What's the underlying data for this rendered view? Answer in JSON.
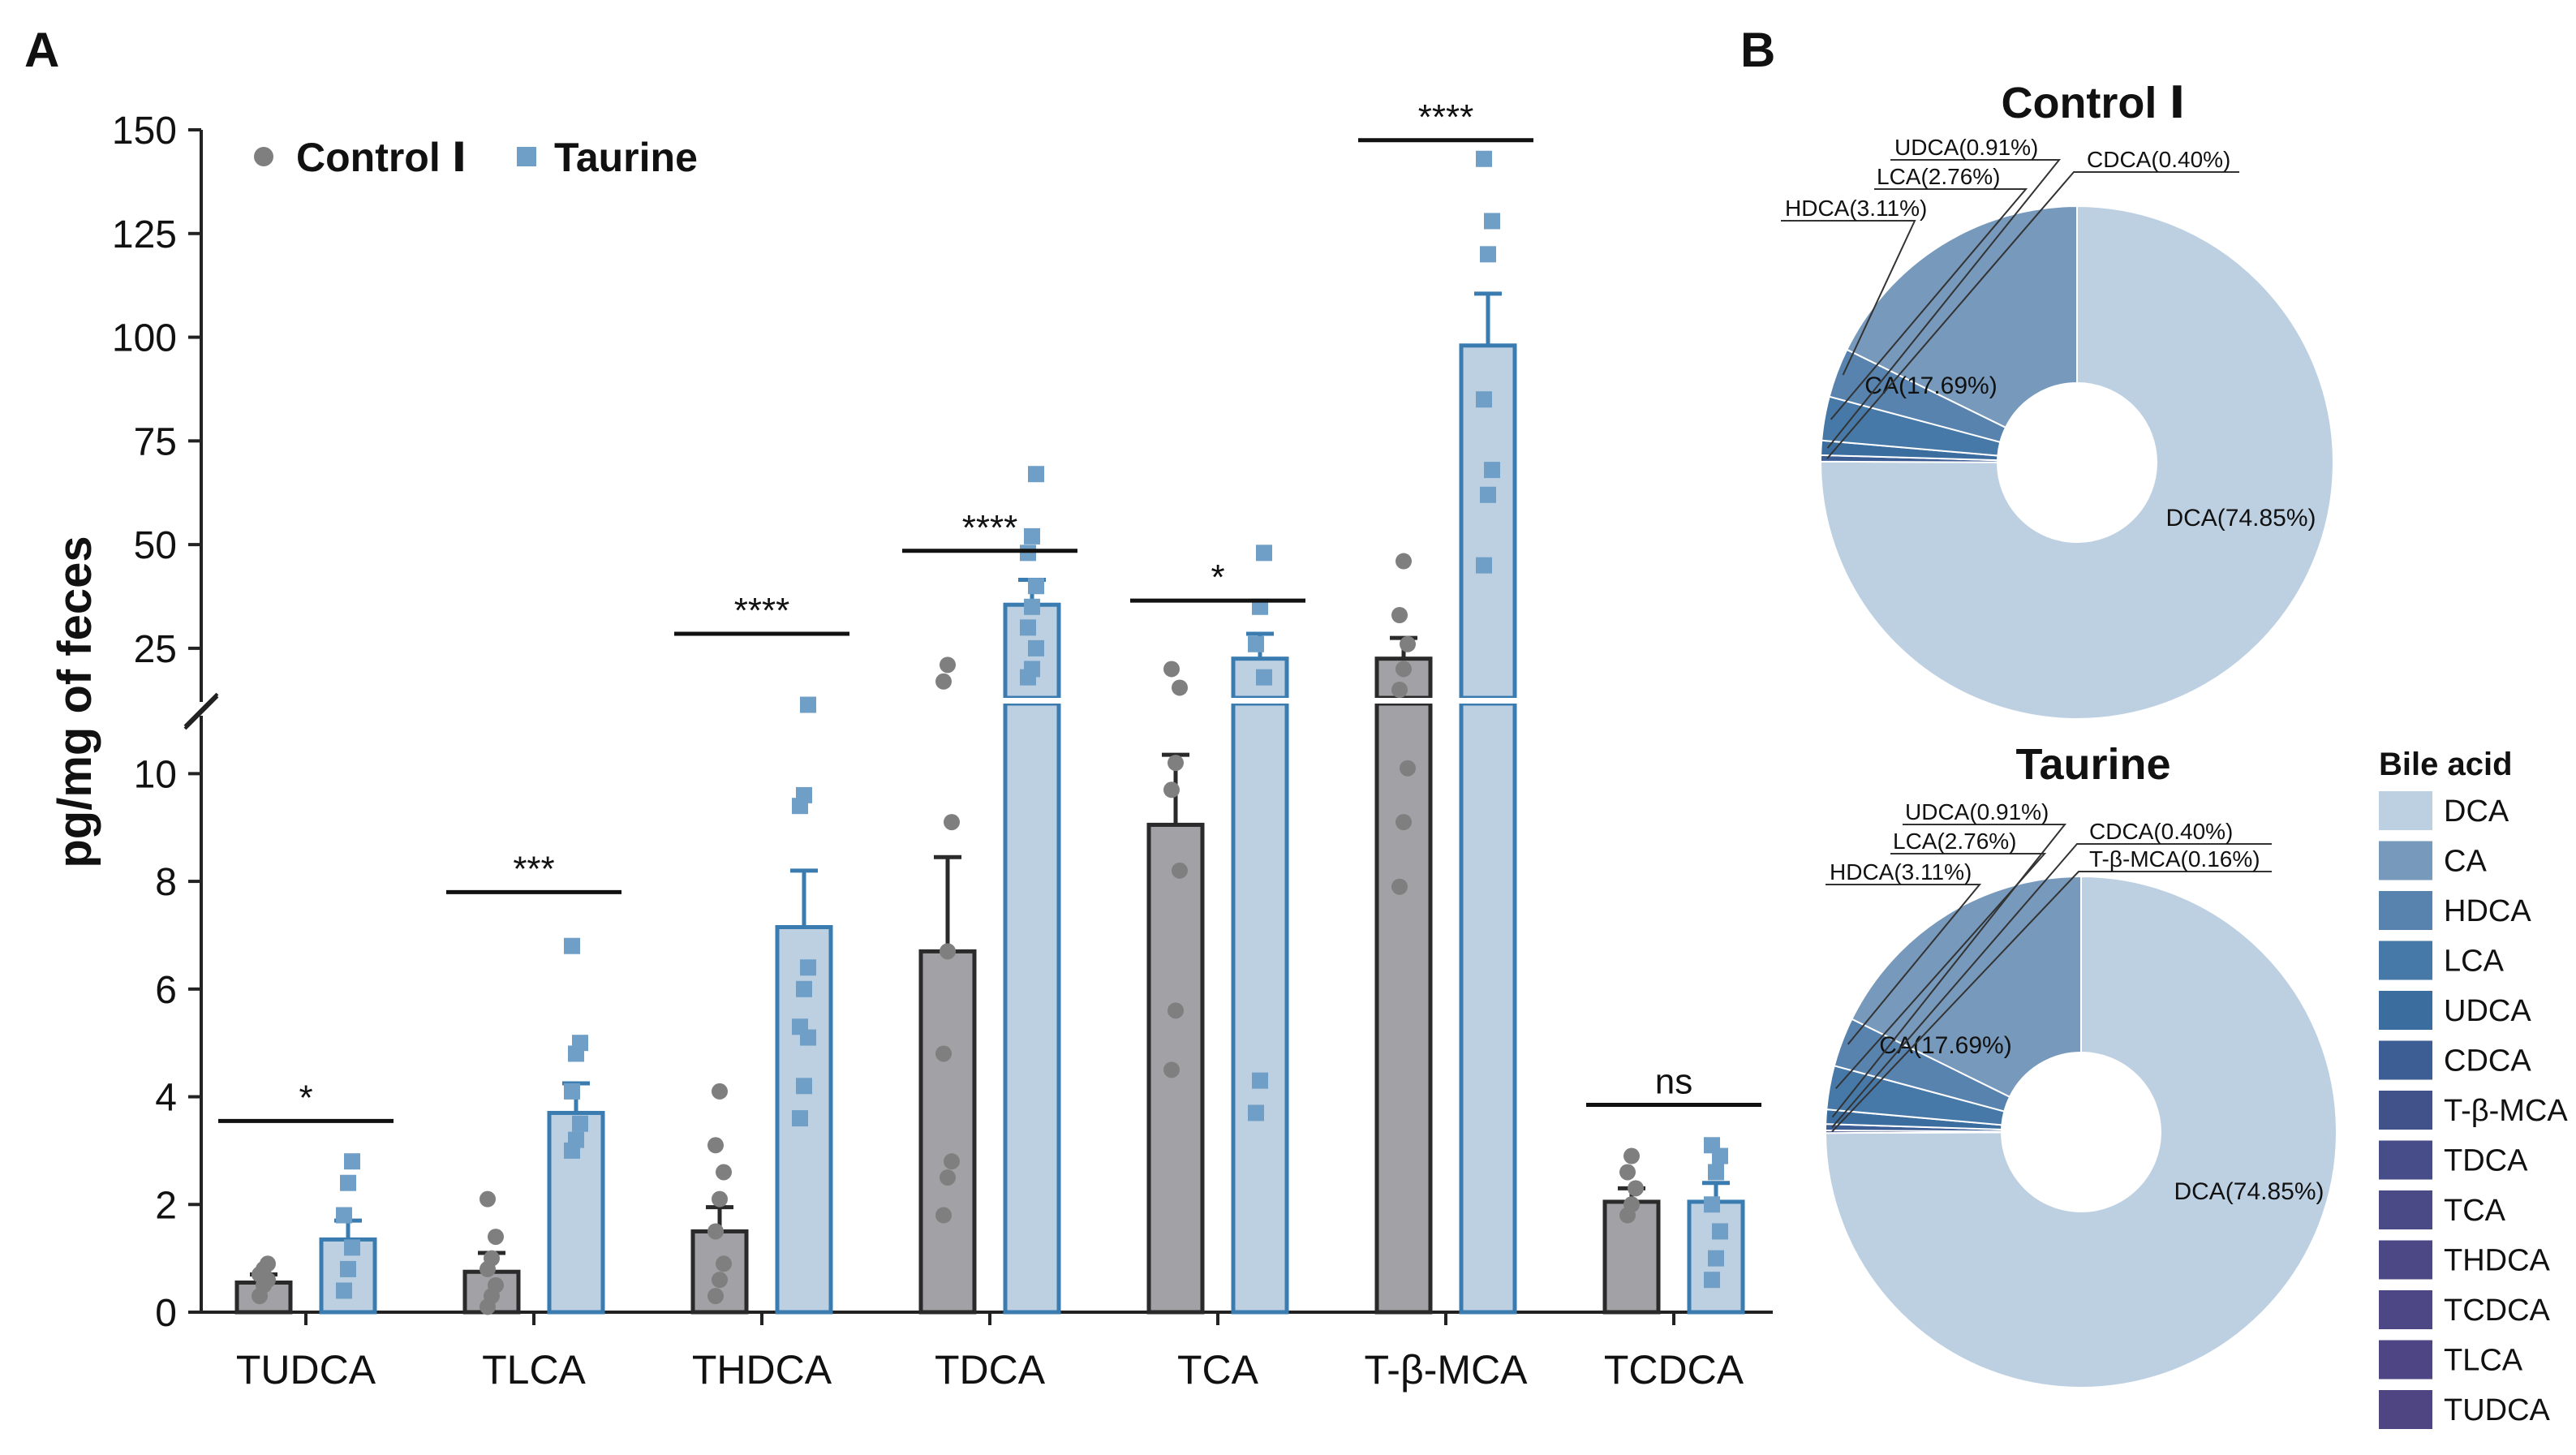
{
  "panel_a_label": "A",
  "panel_b_label": "B",
  "colors": {
    "control": "#7f7f7f",
    "control_fill": "#a2a2a6",
    "taurine": "#6f9fc6",
    "taurine_fill": "#bcd0e2",
    "taurine_edge": "#3b7cb0",
    "axis": "#222222"
  },
  "chart_data": [
    {
      "type": "bar",
      "title": "",
      "ylabel": "pg/mg of feces",
      "xlabel": "",
      "legend": [
        "Control Ⅰ",
        "Taurine"
      ],
      "legend_position": "top-left",
      "broken_axis": {
        "lower_range": [
          0,
          11
        ],
        "upper_range": [
          15,
          150
        ]
      },
      "yticks_lower": [
        0,
        2,
        4,
        6,
        8,
        10
      ],
      "yticks_upper": [
        25,
        50,
        75,
        100,
        125,
        150
      ],
      "categories": [
        "TUDCA",
        "TLCA",
        "THDCA",
        "TDCA",
        "TCA",
        "T-β-MCA",
        "TCDCA"
      ],
      "series": [
        {
          "name": "Control Ⅰ",
          "values": [
            0.55,
            0.75,
            1.5,
            6.7,
            9.05,
            22.5,
            2.05
          ],
          "errors": [
            0.15,
            0.35,
            0.45,
            1.75,
            1.3,
            5.0,
            0.25
          ],
          "points": [
            [
              0.3,
              0.5,
              0.6,
              0.7,
              0.8,
              0.9
            ],
            [
              0.1,
              0.3,
              0.5,
              0.8,
              1.0,
              1.4,
              2.1
            ],
            [
              0.3,
              0.6,
              0.9,
              1.5,
              2.1,
              2.6,
              3.1,
              4.1
            ],
            [
              1.8,
              2.5,
              2.8,
              4.8,
              6.7,
              9.1,
              17.0,
              21.0
            ],
            [
              4.5,
              5.6,
              8.2,
              9.7,
              10.2,
              15.5,
              20.0
            ],
            [
              7.9,
              9.1,
              10.1,
              15.0,
              20.0,
              26.0,
              33.0,
              46.0
            ],
            [
              1.8,
              2.0,
              2.3,
              2.6,
              2.9
            ]
          ]
        },
        {
          "name": "Taurine",
          "values": [
            1.35,
            3.7,
            7.15,
            35.5,
            22.5,
            98.0,
            2.05
          ],
          "errors": [
            0.35,
            0.55,
            1.05,
            6.0,
            6.0,
            12.5,
            0.35
          ],
          "points": [
            [
              0.4,
              0.8,
              1.2,
              1.8,
              2.4,
              2.8
            ],
            [
              3.0,
              3.2,
              3.5,
              4.1,
              4.8,
              5.0,
              6.8
            ],
            [
              3.6,
              4.2,
              5.1,
              5.3,
              6.0,
              6.4,
              9.4,
              9.6,
              11.7
            ],
            [
              18.0,
              20.0,
              25.0,
              30.0,
              35.0,
              40.0,
              48.0,
              52.0,
              67.0
            ],
            [
              3.7,
              4.3,
              18.0,
              26.0,
              35.0,
              48.0
            ],
            [
              45.0,
              62.0,
              68.0,
              85.0,
              120.0,
              128.0,
              143.0
            ],
            [
              0.6,
              1.0,
              1.5,
              2.0,
              2.6,
              2.9,
              3.1
            ]
          ]
        }
      ],
      "significance": [
        "*",
        "***",
        "****",
        "****",
        "*",
        "****",
        "ns"
      ],
      "significance_levels": [
        3.55,
        7.8,
        28.5,
        48.5,
        36.5,
        147.5,
        3.85
      ]
    },
    {
      "type": "pie",
      "title": "Control Ⅰ",
      "labels": [
        "DCA",
        "CA",
        "HDCA",
        "LCA",
        "UDCA",
        "CDCA"
      ],
      "values": [
        74.85,
        17.69,
        3.11,
        2.76,
        0.91,
        0.4
      ],
      "slice_labels": [
        "DCA(74.85%)",
        "CA(17.69%)",
        "HDCA(3.11%)",
        "LCA(2.76%)",
        "UDCA(0.91%)",
        "CDCA(0.40%)"
      ]
    },
    {
      "type": "pie",
      "title": "Taurine",
      "labels": [
        "DCA",
        "CA",
        "HDCA",
        "LCA",
        "UDCA",
        "CDCA",
        "T-β-MCA"
      ],
      "values": [
        74.85,
        17.69,
        3.11,
        2.76,
        0.91,
        0.4,
        0.16
      ],
      "slice_labels": [
        "DCA(74.85%)",
        "CA(17.69%)",
        "HDCA(3.11%)",
        "LCA(2.76%)",
        "UDCA(0.91%)",
        "CDCA(0.40%)",
        "T-β-MCA(0.16%)"
      ]
    }
  ],
  "pie_legend": {
    "title": "Bile acid",
    "items": [
      {
        "label": "DCA",
        "color": "#bdd0e2"
      },
      {
        "label": "CA",
        "color": "#7799bc"
      },
      {
        "label": "HDCA",
        "color": "#5783ae"
      },
      {
        "label": "LCA",
        "color": "#4679a8"
      },
      {
        "label": "UDCA",
        "color": "#3b6e9f"
      },
      {
        "label": "CDCA",
        "color": "#3d5e95"
      },
      {
        "label": "T-β-MCA",
        "color": "#41528b"
      },
      {
        "label": "TDCA",
        "color": "#464d88"
      },
      {
        "label": "TCA",
        "color": "#4a4a87"
      },
      {
        "label": "THDCA",
        "color": "#4c4886"
      },
      {
        "label": "TCDCA",
        "color": "#4d4785"
      },
      {
        "label": "TLCA",
        "color": "#4e4684"
      },
      {
        "label": "TUDCA",
        "color": "#4f4583"
      }
    ]
  }
}
